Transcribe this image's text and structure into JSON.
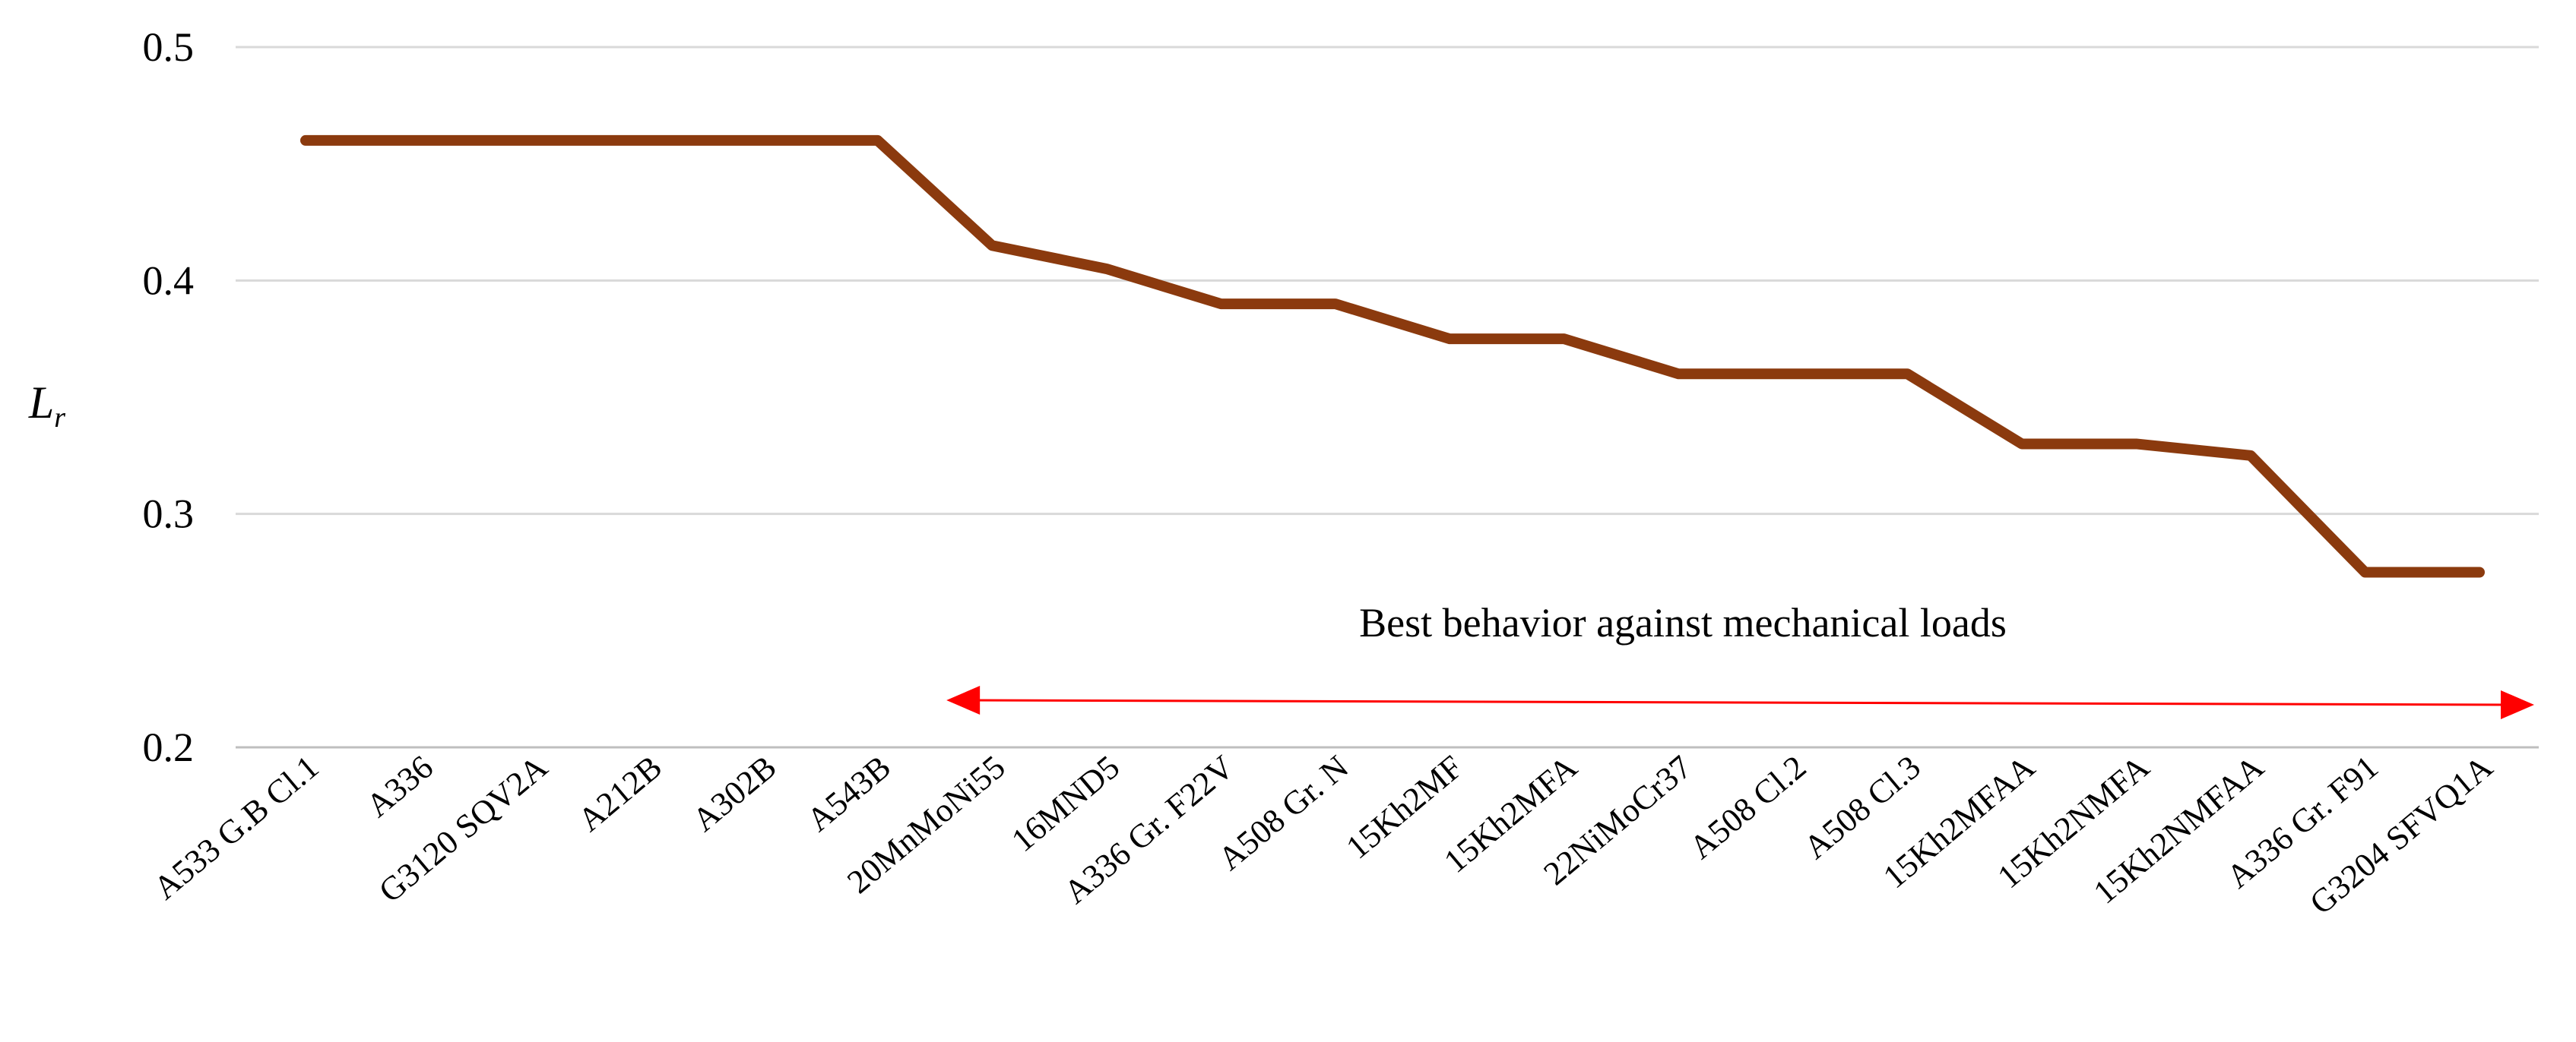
{
  "chart_data": {
    "type": "line",
    "title": "",
    "xlabel": "",
    "ylabel": "L",
    "ylabel_subscript": "r",
    "ylim": [
      0.2,
      0.5
    ],
    "yticks": [
      0.2,
      0.3,
      0.4,
      0.5
    ],
    "ytick_labels": [
      "0.2",
      "0.3",
      "0.4",
      "0.5"
    ],
    "grid": true,
    "categories": [
      "A533 G.B Cl.1",
      "A336",
      "G3120 SQV2A",
      "A212B",
      "A302B",
      "A543B",
      "20MnMoNi55",
      "16MND5",
      "A336 Gr. F22V",
      "A508 Gr. N",
      "15Kh2MF",
      "15Kh2MFA",
      "22NiMoCr37",
      "A508 Cl.2",
      "A508 Cl.3",
      "15Kh2MFAA",
      "15Kh2NMFA",
      "15Kh2NMFAA",
      "A336 Gr. F91",
      "G3204 SFVQ1A"
    ],
    "series": [
      {
        "name": "Lr",
        "color": "#8B3A0E",
        "values": [
          0.46,
          0.46,
          0.46,
          0.46,
          0.46,
          0.46,
          0.415,
          0.405,
          0.39,
          0.39,
          0.375,
          0.375,
          0.36,
          0.36,
          0.36,
          0.33,
          0.33,
          0.325,
          0.275,
          0.275
        ]
      }
    ],
    "annotation": {
      "text": "Best behavior against mechanical loads",
      "arrow_from_category": "20MnMoNi55",
      "arrow_to_category": "G3204 SFVQ1A",
      "arrow_color": "#ff0000"
    },
    "colors": {
      "grid": "#d9d9d9",
      "axis": "#bfbfbf"
    }
  }
}
